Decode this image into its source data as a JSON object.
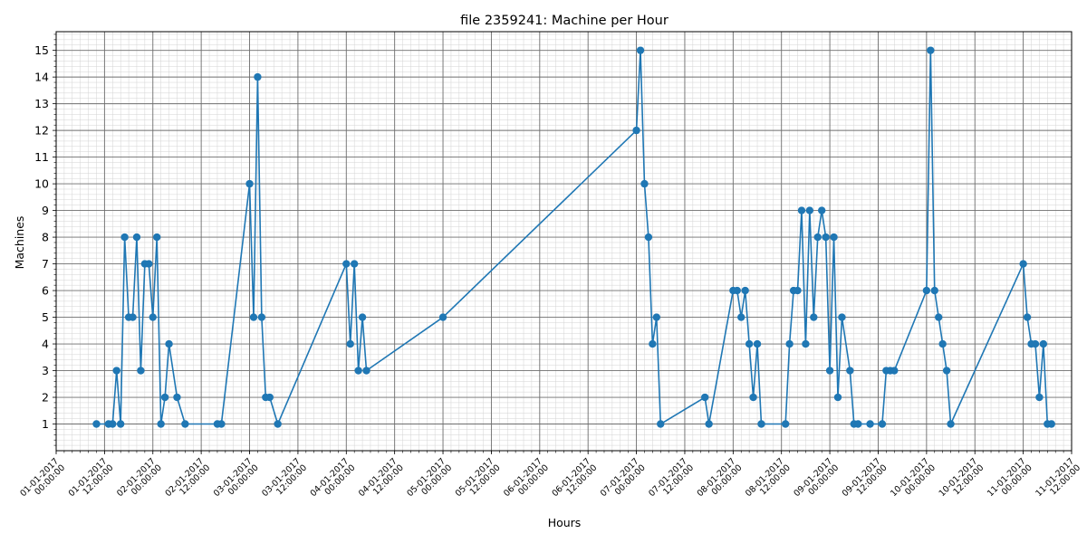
{
  "chart_data": {
    "type": "line",
    "title": "file 2359241: Machine per Hour",
    "xlabel": "Hours",
    "ylabel": "Machines",
    "grid": true,
    "legend": "none",
    "x_range": [
      "2017-01-01 00:00:00",
      "2017-01-11 12:00:00"
    ],
    "y_range": [
      0,
      15.7
    ],
    "yticks": [
      1,
      2,
      3,
      4,
      5,
      6,
      7,
      8,
      9,
      10,
      11,
      12,
      13,
      14,
      15
    ],
    "xtick_labels": [
      [
        "01-01-2017",
        "00:00:00"
      ],
      [
        "01-01-2017",
        "12:00:00"
      ],
      [
        "02-01-2017",
        "00:00:00"
      ],
      [
        "02-01-2017",
        "12:00:00"
      ],
      [
        "03-01-2017",
        "00:00:00"
      ],
      [
        "03-01-2017",
        "12:00:00"
      ],
      [
        "04-01-2017",
        "00:00:00"
      ],
      [
        "04-01-2017",
        "12:00:00"
      ],
      [
        "05-01-2017",
        "00:00:00"
      ],
      [
        "05-01-2017",
        "12:00:00"
      ],
      [
        "06-01-2017",
        "00:00:00"
      ],
      [
        "06-01-2017",
        "12:00:00"
      ],
      [
        "07-01-2017",
        "00:00:00"
      ],
      [
        "07-01-2017",
        "12:00:00"
      ],
      [
        "08-01-2017",
        "00:00:00"
      ],
      [
        "08-01-2017",
        "12:00:00"
      ],
      [
        "09-01-2017",
        "00:00:00"
      ],
      [
        "09-01-2017",
        "12:00:00"
      ],
      [
        "10-01-2017",
        "00:00:00"
      ],
      [
        "10-01-2017",
        "12:00:00"
      ],
      [
        "11-01-2017",
        "00:00:00"
      ],
      [
        "11-01-2017",
        "12:00:00"
      ]
    ],
    "series": [
      {
        "color": "#1f77b4",
        "marker": "circle",
        "x": [
          "2017-01-01 10:00",
          "2017-01-01 13:00",
          "2017-01-01 14:00",
          "2017-01-01 15:00",
          "2017-01-01 16:00",
          "2017-01-01 17:00",
          "2017-01-01 18:00",
          "2017-01-01 19:00",
          "2017-01-01 20:00",
          "2017-01-01 21:00",
          "2017-01-01 22:00",
          "2017-01-01 23:00",
          "2017-01-02 00:00",
          "2017-01-02 01:00",
          "2017-01-02 02:00",
          "2017-01-02 03:00",
          "2017-01-02 04:00",
          "2017-01-02 06:00",
          "2017-01-02 08:00",
          "2017-01-02 16:00",
          "2017-01-02 17:00",
          "2017-01-03 00:00",
          "2017-01-03 01:00",
          "2017-01-03 02:00",
          "2017-01-03 03:00",
          "2017-01-03 04:00",
          "2017-01-03 05:00",
          "2017-01-03 07:00",
          "2017-01-04 00:00",
          "2017-01-04 01:00",
          "2017-01-04 02:00",
          "2017-01-04 03:00",
          "2017-01-04 04:00",
          "2017-01-04 05:00",
          "2017-01-05 00:00",
          "2017-01-07 00:00",
          "2017-01-07 01:00",
          "2017-01-07 02:00",
          "2017-01-07 03:00",
          "2017-01-07 04:00",
          "2017-01-07 05:00",
          "2017-01-07 06:00",
          "2017-01-07 17:00",
          "2017-01-07 18:00",
          "2017-01-08 00:00",
          "2017-01-08 01:00",
          "2017-01-08 02:00",
          "2017-01-08 03:00",
          "2017-01-08 04:00",
          "2017-01-08 05:00",
          "2017-01-08 06:00",
          "2017-01-08 07:00",
          "2017-01-08 13:00",
          "2017-01-08 14:00",
          "2017-01-08 15:00",
          "2017-01-08 16:00",
          "2017-01-08 17:00",
          "2017-01-08 18:00",
          "2017-01-08 19:00",
          "2017-01-08 20:00",
          "2017-01-08 21:00",
          "2017-01-08 22:00",
          "2017-01-08 23:00",
          "2017-01-09 00:00",
          "2017-01-09 01:00",
          "2017-01-09 02:00",
          "2017-01-09 03:00",
          "2017-01-09 05:00",
          "2017-01-09 06:00",
          "2017-01-09 07:00",
          "2017-01-09 10:00",
          "2017-01-09 13:00",
          "2017-01-09 14:00",
          "2017-01-09 15:00",
          "2017-01-09 16:00",
          "2017-01-10 00:00",
          "2017-01-10 01:00",
          "2017-01-10 02:00",
          "2017-01-10 03:00",
          "2017-01-10 04:00",
          "2017-01-10 05:00",
          "2017-01-10 06:00",
          "2017-01-11 00:00",
          "2017-01-11 01:00",
          "2017-01-11 02:00",
          "2017-01-11 03:00",
          "2017-01-11 04:00",
          "2017-01-11 05:00",
          "2017-01-11 06:00",
          "2017-01-11 07:00"
        ],
        "y": [
          1,
          1,
          1,
          3,
          1,
          8,
          5,
          5,
          8,
          3,
          7,
          7,
          5,
          8,
          1,
          2,
          4,
          2,
          1,
          1,
          1,
          10,
          5,
          14,
          5,
          2,
          2,
          1,
          7,
          4,
          7,
          3,
          5,
          3,
          5,
          12,
          15,
          10,
          8,
          4,
          5,
          1,
          2,
          1,
          6,
          6,
          5,
          6,
          4,
          2,
          4,
          1,
          1,
          4,
          6,
          6,
          9,
          4,
          9,
          5,
          8,
          9,
          8,
          3,
          8,
          2,
          5,
          3,
          1,
          1,
          1,
          1,
          3,
          3,
          3,
          6,
          15,
          6,
          5,
          4,
          3,
          1,
          7,
          5,
          4,
          4,
          2,
          4,
          1,
          1
        ]
      }
    ]
  }
}
